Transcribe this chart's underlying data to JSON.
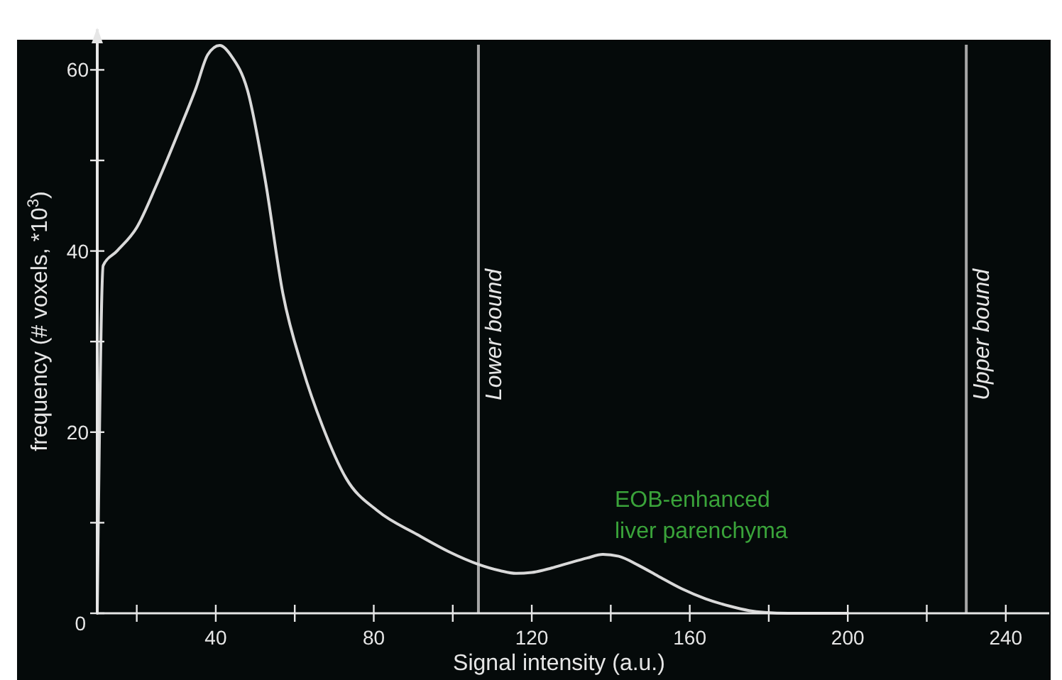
{
  "chart_data": {
    "type": "line",
    "xlabel": "Signal intensity (a.u.)",
    "ylabel": "frequency (# voxels, *10$^{3}$)",
    "x": [
      10,
      11.5,
      15,
      20,
      25,
      31,
      35,
      38,
      41,
      44,
      48,
      52.5,
      57,
      62,
      67,
      73,
      81,
      91,
      99,
      106.5,
      112,
      116,
      120,
      125,
      129,
      134,
      138,
      142,
      147,
      152,
      158,
      164,
      170,
      175,
      179,
      185,
      191,
      200
    ],
    "series": [
      {
        "color": "#d9d9d9",
        "values": [
          0,
          38.4,
          40,
          42.6,
          47.3,
          53.6,
          58,
          61.7,
          62.7,
          61.5,
          57.8,
          47.9,
          35.3,
          27,
          20.7,
          14.9,
          11.3,
          8.7,
          6.8,
          5.4,
          4.7,
          4.4,
          4.5,
          5,
          5.5,
          6.1,
          6.5,
          6.3,
          5.3,
          4.1,
          2.7,
          1.6,
          0.8,
          0.3,
          0.1,
          0,
          0,
          0
        ]
      }
    ],
    "xlim": [
      10,
      251
    ],
    "ylim": [
      0,
      64.5
    ],
    "xticks": [
      {
        "value": 20,
        "label": null
      },
      40,
      {
        "value": 60,
        "label": null
      },
      80,
      {
        "value": 100,
        "label": null
      },
      120,
      {
        "value": 140,
        "label": null
      },
      160,
      {
        "value": 180,
        "label": null
      },
      200,
      {
        "value": 220,
        "label": null
      },
      240
    ],
    "yticks": [
      0,
      {
        "value": 10,
        "label": null
      },
      20,
      {
        "value": 30,
        "label": null
      },
      40,
      {
        "value": 50,
        "label": null
      },
      60
    ],
    "ref_lines": [
      {
        "axis": "x",
        "value": 106.5,
        "label": "Lower bound",
        "color": "#a6a6a6"
      },
      {
        "axis": "x",
        "value": 230,
        "label": "Upper bound",
        "color": "#a6a6a6"
      }
    ],
    "annotations": [
      "EOB-enhanced\nliver parenchyma"
    ],
    "grid": false,
    "marker": "none",
    "line_style": "solid"
  }
}
